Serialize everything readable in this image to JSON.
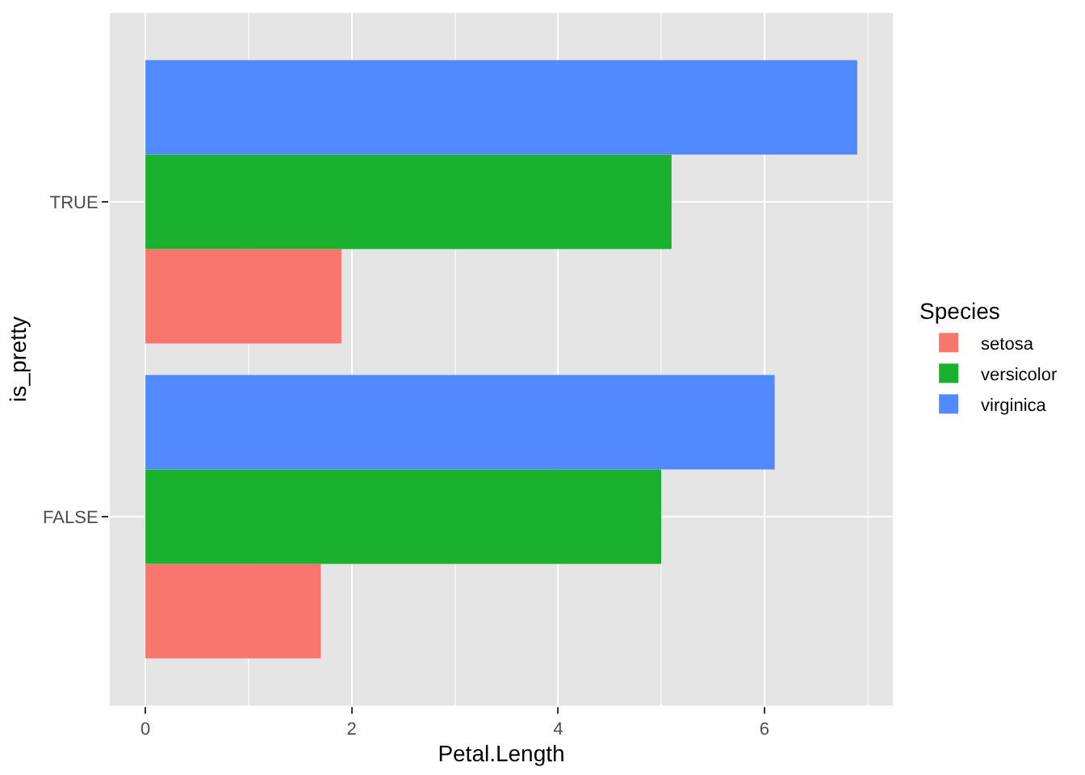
{
  "chart_data": {
    "type": "bar",
    "orientation": "horizontal",
    "xlabel": "Petal.Length",
    "ylabel": "is_pretty",
    "legend_title": "Species",
    "categories": [
      "TRUE",
      "FALSE"
    ],
    "series": [
      {
        "name": "setosa",
        "color": "#f8766d",
        "values": [
          1.9,
          1.7
        ]
      },
      {
        "name": "versicolor",
        "color": "#1ab12f",
        "values": [
          5.1,
          5.0
        ]
      },
      {
        "name": "virginica",
        "color": "#518aff",
        "values": [
          6.9,
          6.1
        ]
      }
    ],
    "xlim": [
      -0.345,
      7.245
    ],
    "xticks": [
      0,
      {
        "value": 1,
        "label": null
      },
      2,
      {
        "value": 3,
        "label": null
      },
      4,
      {
        "value": 5,
        "label": null
      },
      6,
      {
        "value": 7,
        "label": null
      }
    ],
    "grid": true,
    "legend": "right"
  }
}
